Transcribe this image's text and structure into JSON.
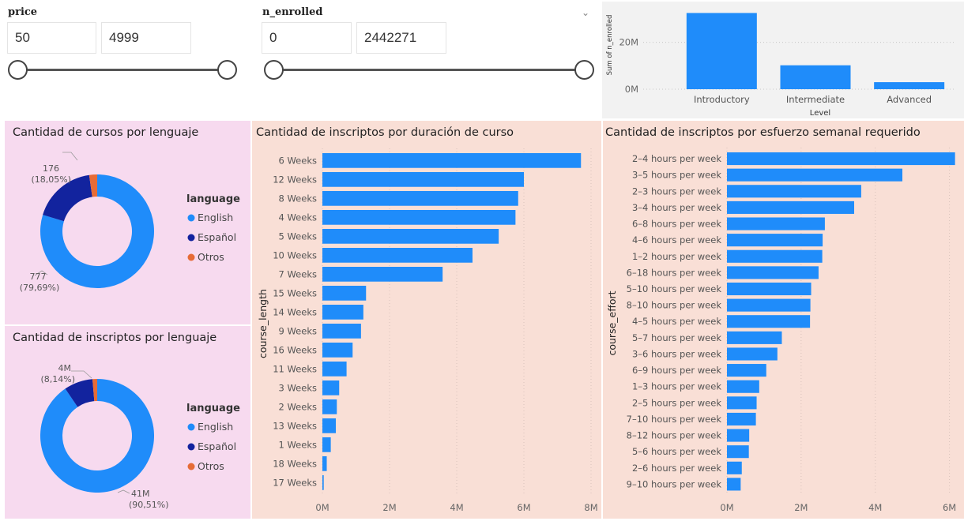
{
  "slicers": {
    "price": {
      "title": "price",
      "min": "50",
      "max": "4999"
    },
    "enrolled": {
      "title": "n_enrolled",
      "min": "0",
      "max": "2442271"
    }
  },
  "colors": {
    "english": "#1f8cfa",
    "espanol": "#12239e",
    "otros": "#e66c37",
    "bar": "#1f8cfa"
  },
  "charts": {
    "level": {
      "type": "bar",
      "xlabel": "Level",
      "ylabel": "Sum of n_enrolled",
      "categories": [
        "Introductory",
        "Intermediate",
        "Advanced"
      ],
      "values": [
        32500000,
        10200000,
        3000000
      ],
      "ylim": [
        0,
        34000000
      ],
      "ticks": [
        {
          "v": 0,
          "label": "0M"
        },
        {
          "v": 20000000,
          "label": "20M"
        }
      ]
    },
    "courses_lang": {
      "type": "pie",
      "title": "Cantidad de cursos por lenguaje",
      "legend_title": "language",
      "slices": [
        {
          "name": "English",
          "value": 777,
          "color": "#1f8cfa"
        },
        {
          "name": "Español",
          "value": 176,
          "color": "#12239e"
        },
        {
          "name": "Otros",
          "value": 22,
          "color": "#e66c37"
        }
      ],
      "label_top": {
        "value": "176",
        "pct": "(18,05%)"
      },
      "label_bottom": {
        "value": "777",
        "pct": "(79,69%)"
      }
    },
    "enrolled_lang": {
      "type": "pie",
      "title": "Cantidad de inscriptos por lenguaje",
      "legend_title": "language",
      "slices": [
        {
          "name": "English",
          "value": 41,
          "color": "#1f8cfa"
        },
        {
          "name": "Español",
          "value": 3.7,
          "color": "#12239e"
        },
        {
          "name": "Otros",
          "value": 0.6,
          "color": "#e66c37"
        }
      ],
      "label_top": {
        "value": "4M",
        "pct": "(8,14%)"
      },
      "label_bottom": {
        "value": "41M",
        "pct": "(90,51%)"
      }
    },
    "length": {
      "type": "bar",
      "title": "Cantidad de inscriptos por duración de curso",
      "ylabel": "course_length",
      "categories": [
        "6 Weeks",
        "12 Weeks",
        "8 Weeks",
        "4 Weeks",
        "5 Weeks",
        "10 Weeks",
        "7 Weeks",
        "15 Weeks",
        "14 Weeks",
        "9 Weeks",
        "16 Weeks",
        "11 Weeks",
        "3 Weeks",
        "2 Weeks",
        "13 Weeks",
        "1 Weeks",
        "18 Weeks",
        "17 Weeks"
      ],
      "values": [
        7700000,
        6000000,
        5830000,
        5750000,
        5250000,
        4470000,
        3580000,
        1300000,
        1220000,
        1150000,
        900000,
        720000,
        500000,
        430000,
        400000,
        250000,
        130000,
        40000
      ],
      "xlim": [
        0,
        8000000
      ],
      "ticks": [
        {
          "v": 0,
          "label": "0M"
        },
        {
          "v": 2000000,
          "label": "2M"
        },
        {
          "v": 4000000,
          "label": "4M"
        },
        {
          "v": 6000000,
          "label": "6M"
        },
        {
          "v": 8000000,
          "label": "8M"
        }
      ]
    },
    "effort": {
      "type": "bar",
      "title": "Cantidad de inscriptos por esfuerzo semanal requerido",
      "ylabel": "course_effort",
      "categories": [
        "2–4 hours per week",
        "3–5 hours per week",
        "2–3 hours per week",
        "3–4 hours per week",
        "6–8 hours per week",
        "4–6 hours per week",
        "1–2 hours per week",
        "6–18 hours per week",
        "5–10 hours per week",
        "8–10 hours per week",
        "4–5 hours per week",
        "5–7 hours per week",
        "3–6 hours per week",
        "6–9 hours per week",
        "1–3 hours per week",
        "2–5 hours per week",
        "7–10 hours per week",
        "8–12 hours per week",
        "5–6 hours per week",
        "2–6 hours per week",
        "9–10 hours per week"
      ],
      "values": [
        6150000,
        4730000,
        3620000,
        3430000,
        2640000,
        2580000,
        2570000,
        2470000,
        2270000,
        2250000,
        2240000,
        1480000,
        1360000,
        1060000,
        870000,
        800000,
        780000,
        600000,
        590000,
        400000,
        370000
      ],
      "xlim": [
        0,
        6200000
      ],
      "ticks": [
        {
          "v": 0,
          "label": "0M"
        },
        {
          "v": 2000000,
          "label": "2M"
        },
        {
          "v": 4000000,
          "label": "4M"
        },
        {
          "v": 6000000,
          "label": "6M"
        }
      ]
    }
  }
}
